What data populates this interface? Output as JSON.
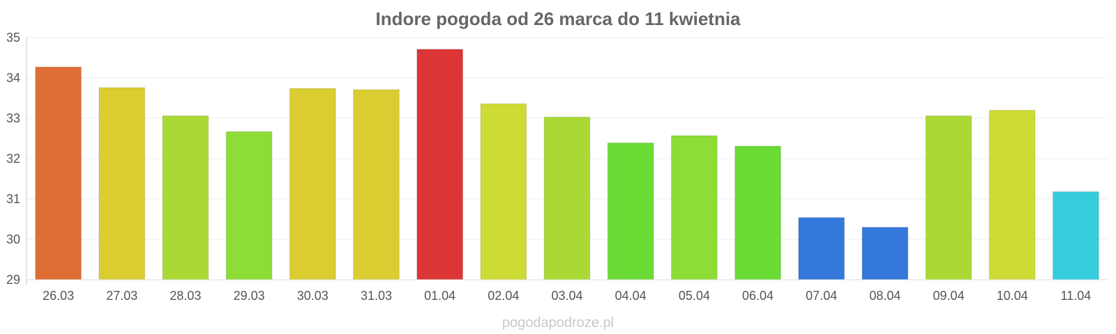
{
  "chart_data": {
    "type": "bar",
    "title": "Indore pogoda od 26 marca do 11 kwietnia",
    "xlabel": "",
    "ylabel": "",
    "ylim": [
      29,
      35
    ],
    "yticks": [
      29,
      30,
      31,
      32,
      33,
      34,
      35
    ],
    "grid": true,
    "categories": [
      "26.03",
      "27.03",
      "28.03",
      "29.03",
      "30.03",
      "31.03",
      "01.04",
      "02.04",
      "03.04",
      "04.04",
      "05.04",
      "06.04",
      "07.04",
      "08.04",
      "09.04",
      "10.04",
      "11.04"
    ],
    "values": [
      34.27,
      33.76,
      33.06,
      32.67,
      33.74,
      33.71,
      34.71,
      33.36,
      33.03,
      32.39,
      32.57,
      32.31,
      30.54,
      30.3,
      33.06,
      33.2,
      31.18
    ],
    "colors": [
      "#df6e35",
      "#dbcc32",
      "#aad935",
      "#8ddd36",
      "#dbcc32",
      "#dbcc32",
      "#db3535",
      "#cddb35",
      "#aad935",
      "#6bdb35",
      "#8ddd36",
      "#6bdb35",
      "#3478db",
      "#3478db",
      "#aad935",
      "#cddb35",
      "#35cddb"
    ]
  },
  "watermark": "pogodapodroze.pl"
}
